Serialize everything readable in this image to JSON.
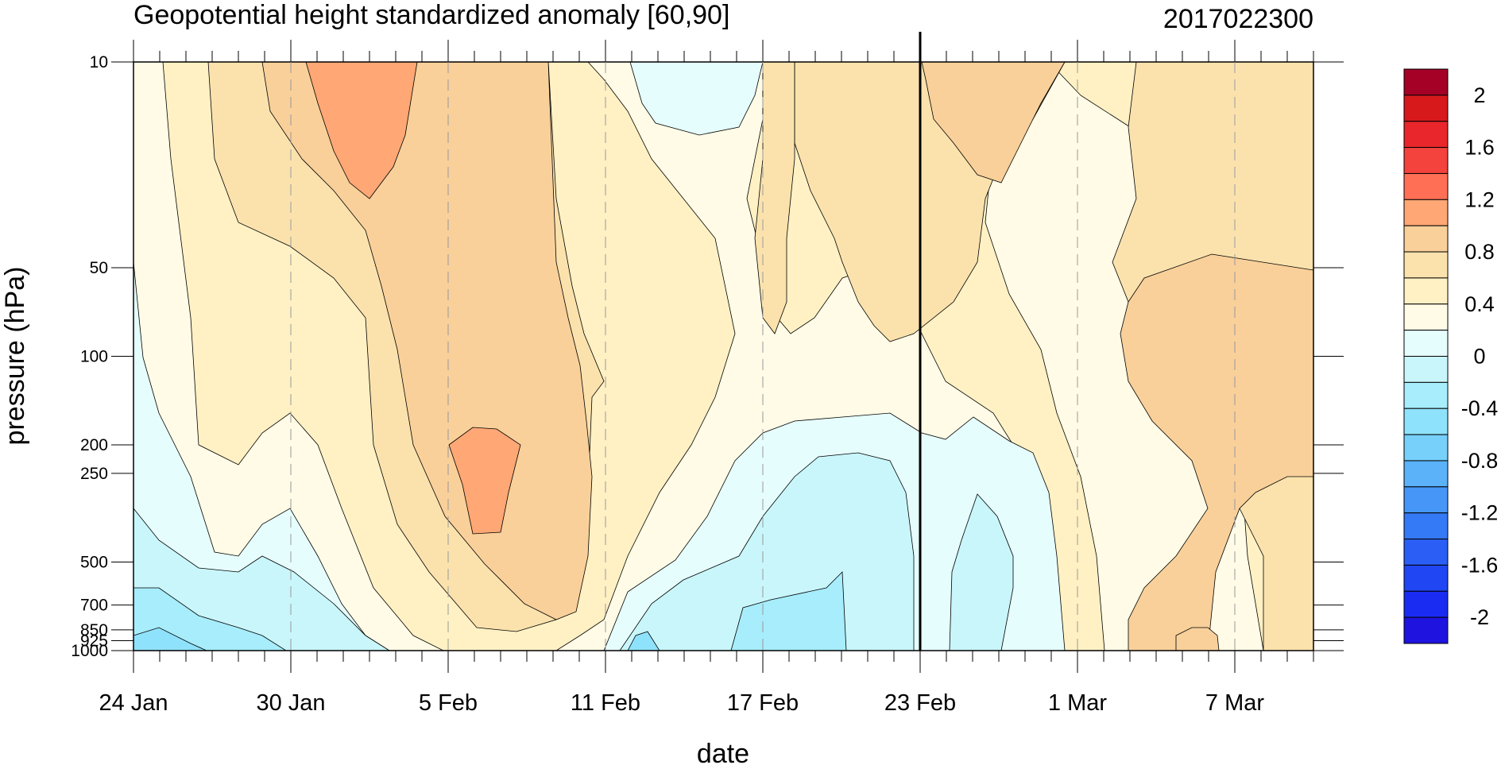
{
  "chart_data": {
    "type": "contour",
    "title": "Geopotential height standardized anomaly [60,90]",
    "date_stamp": "2017022300",
    "xlabel": "date",
    "ylabel": "pressure (hPa)",
    "x_tick_labels": [
      "24 Jan",
      "30 Jan",
      "5 Feb",
      "11 Feb",
      "17 Feb",
      "23 Feb",
      "1 Mar",
      "7 Mar"
    ],
    "x_range_days": [
      0,
      45
    ],
    "current_date_line": "23 Feb",
    "y_tick_labels": [
      "10",
      "50",
      "100",
      "200",
      "250",
      "500",
      "700",
      "850",
      "925",
      "1000"
    ],
    "y_values_hPa": [
      10,
      50,
      100,
      200,
      250,
      500,
      700,
      850,
      925,
      1000
    ],
    "y_scale": "log",
    "y_reversed": true,
    "colorbar": {
      "labels": [
        "2",
        "1.6",
        "1.2",
        "0.8",
        "0.4",
        "0",
        "-0.4",
        "-0.8",
        "-1.2",
        "-1.6",
        "-2"
      ],
      "levels": [
        2.2,
        2.0,
        1.8,
        1.6,
        1.4,
        1.2,
        1.0,
        0.8,
        0.6,
        0.4,
        0.2,
        0.0,
        -0.2,
        -0.4,
        -0.6,
        -0.8,
        -1.0,
        -1.2,
        -1.4,
        -1.6,
        -1.8,
        -2.0,
        -2.2
      ],
      "colors": [
        "#a50026",
        "#d7191c",
        "#e8262b",
        "#f4423d",
        "#ff6f55",
        "#ffa775",
        "#f9d09a",
        "#fbe2ad",
        "#fff1c4",
        "#fffbe6",
        "#e6fdfd",
        "#c9f6fb",
        "#a7edfb",
        "#8fe2fb",
        "#76d0fa",
        "#5bb2f8",
        "#4596f7",
        "#3479f5",
        "#2a5ef4",
        "#2046f3",
        "#1a2cf2",
        "#1f13e0"
      ]
    },
    "anomaly_regions_description_values": [
      {
        "level": "0.8 to 1.0",
        "location": "near 1-2 Feb at 10-30 hPa and near 6-7 Feb at 200-400 hPa"
      },
      {
        "level": "-0.6 to -0.8",
        "location": "17-21 Feb at 700-1000 hPa"
      }
    ]
  }
}
